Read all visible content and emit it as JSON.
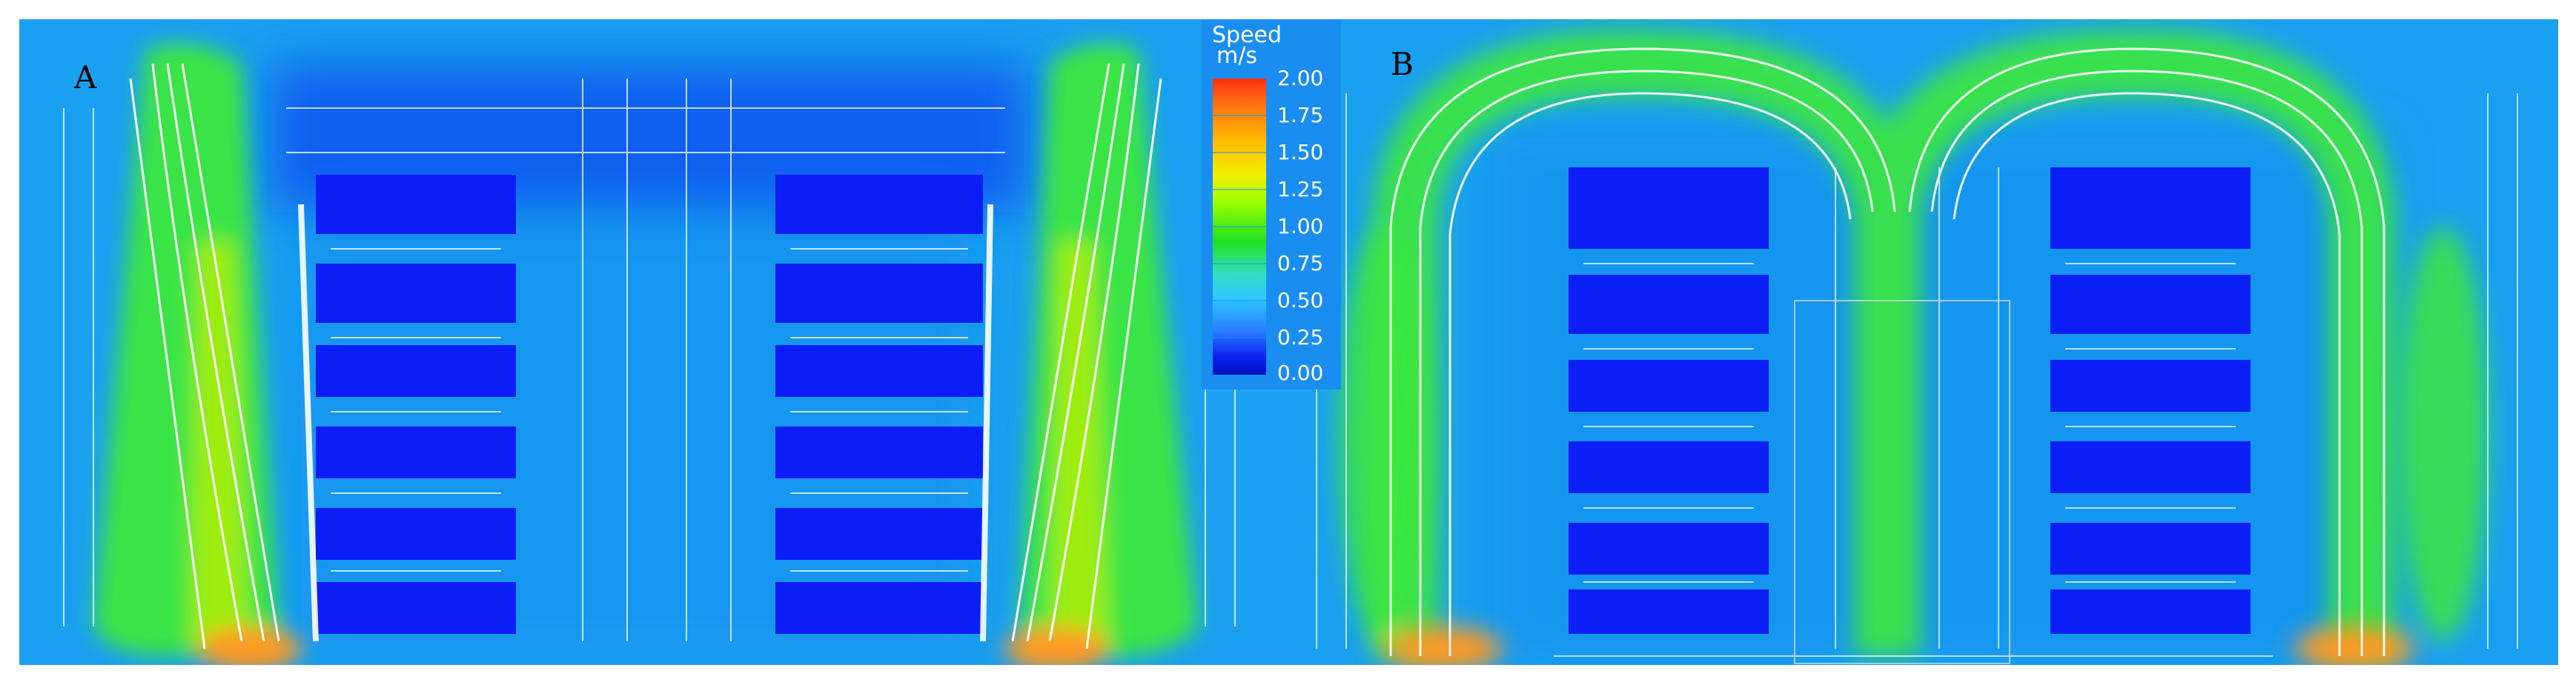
{
  "panels": [
    {
      "id": "A",
      "label": "A"
    },
    {
      "id": "B",
      "label": "B"
    }
  ],
  "legend": {
    "title_line1": "Speed",
    "title_line2": "m/s",
    "ticks": [
      "2.00",
      "1.75",
      "1.50",
      "1.25",
      "1.00",
      "0.75",
      "0.50",
      "0.25",
      "0.00"
    ],
    "colors": [
      "#ff3010",
      "#ff7a10",
      "#ffc000",
      "#f0f000",
      "#9aff00",
      "#20e020",
      "#30e0c0",
      "#30c8ff",
      "#2a80ff",
      "#0a20f0",
      "#0010c0"
    ]
  },
  "colors": {
    "background_flow": "#1aa0f0",
    "slow_zone": "#0a3cf0",
    "block": "#0a1ef5",
    "jet": "#3ce83c",
    "jet_core": "#b8f000",
    "hot_spot": "#ff9a20",
    "vector": "#ffffff"
  }
}
